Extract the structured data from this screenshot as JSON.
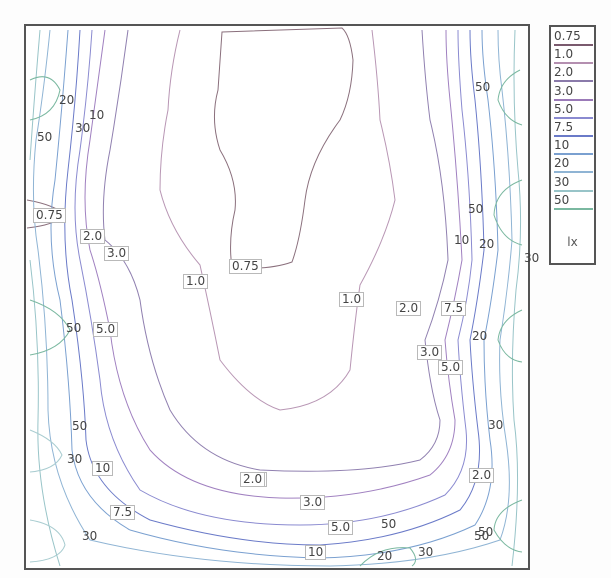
{
  "chart_data": {
    "type": "contour",
    "title": "",
    "unit": "lx",
    "levels": [
      "0.75",
      "1.0",
      "2.0",
      "3.0",
      "5.0",
      "7.5",
      "10",
      "20",
      "30",
      "50"
    ],
    "level_colors": [
      "#7a5a6e",
      "#b48fb0",
      "#8a7aaa",
      "#9b7ab8",
      "#8a8ad0",
      "#6a7ac8",
      "#7aa0d0",
      "#8fb4d4",
      "#98c4c8",
      "#7ab8a0"
    ],
    "legend_placement": "right",
    "grid": false,
    "contour_labels": [
      {
        "v": "0.75",
        "box": true
      },
      {
        "v": "1.0",
        "box": true
      },
      {
        "v": "1.0",
        "box": true
      },
      {
        "v": "0.75",
        "box": true
      },
      {
        "v": "2.0",
        "box": true
      },
      {
        "v": "3.0",
        "box": true
      },
      {
        "v": "5.0",
        "box": true
      },
      {
        "v": "2.0",
        "box": true
      },
      {
        "v": "7.5",
        "box": true
      },
      {
        "v": "3.0",
        "box": true
      },
      {
        "v": "5.0",
        "box": true
      },
      {
        "v": "2.0",
        "box": true
      },
      {
        "v": "3.0",
        "box": true
      },
      {
        "v": "5.0",
        "box": true
      },
      {
        "v": "10",
        "box": true
      },
      {
        "v": "7.5",
        "box": true
      },
      {
        "v": "10",
        "box": true
      },
      {
        "v": "2.0",
        "box": true
      },
      {
        "v": "2.0",
        "box": true
      },
      {
        "v": "20",
        "box": false
      },
      {
        "v": "10",
        "box": false
      },
      {
        "v": "30",
        "box": false
      },
      {
        "v": "50",
        "box": false
      },
      {
        "v": "50",
        "box": false
      },
      {
        "v": "50",
        "box": false
      },
      {
        "v": "10",
        "box": false
      },
      {
        "v": "20",
        "box": false
      },
      {
        "v": "30",
        "box": false
      },
      {
        "v": "50",
        "box": false
      },
      {
        "v": "20",
        "box": false
      },
      {
        "v": "50",
        "box": false
      },
      {
        "v": "30",
        "box": false
      },
      {
        "v": "30",
        "box": false
      },
      {
        "v": "30",
        "box": false
      },
      {
        "v": "50",
        "box": false
      },
      {
        "v": "50",
        "box": false
      },
      {
        "v": "20",
        "box": false
      },
      {
        "v": "30",
        "box": false
      },
      {
        "v": "50",
        "box": false
      }
    ]
  }
}
